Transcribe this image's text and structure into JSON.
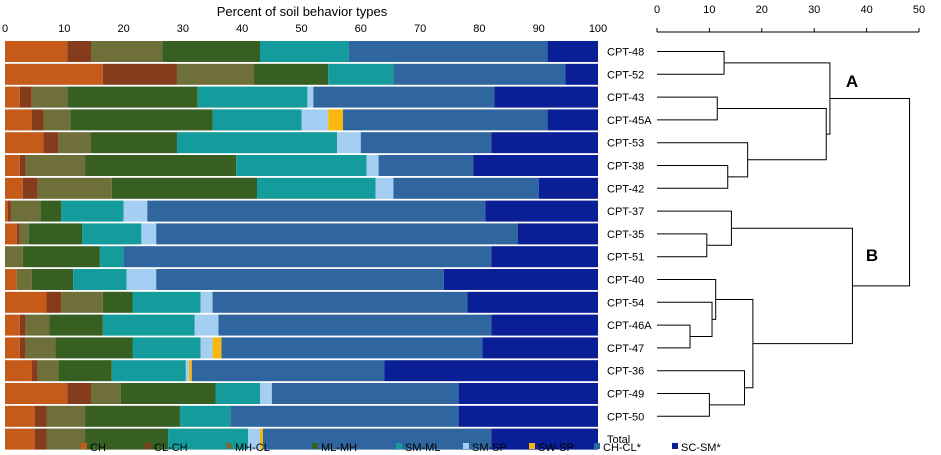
{
  "chart_data": [
    {
      "type": "bar",
      "orientation": "horizontal",
      "stacked": true,
      "title": "Percent of soil behavior types",
      "xlim": [
        0,
        100
      ],
      "xticks": [
        0,
        10,
        20,
        30,
        40,
        50,
        60,
        70,
        80,
        90,
        100
      ],
      "categories": [
        "CPT-48",
        "CPT-52",
        "CPT-43",
        "CPT-45A",
        "CPT-53",
        "CPT-38",
        "CPT-42",
        "CPT-37",
        "CPT-35",
        "CPT-51",
        "CPT-40",
        "CPT-54",
        "CPT-46A",
        "CPT-47",
        "CPT-36",
        "CPT-49",
        "CPT-50",
        "Total"
      ],
      "legend_position": "bottom",
      "series": [
        {
          "name": "CH",
          "color": "#C65A18",
          "values": [
            10.5,
            16.5,
            2.5,
            4.5,
            6.5,
            2.5,
            3,
            0.5,
            2,
            0,
            2,
            7,
            2.5,
            2.5,
            4.5,
            10.5,
            5,
            5
          ]
        },
        {
          "name": "CL-CH",
          "color": "#843C1C",
          "values": [
            4,
            12.5,
            2,
            2,
            2.5,
            1,
            2.5,
            0.5,
            0.5,
            0,
            0,
            2.5,
            1,
            1,
            1,
            4,
            2,
            2
          ]
        },
        {
          "name": "MH-CL",
          "color": "#6F6F3A",
          "values": [
            12,
            13,
            6,
            4.5,
            5.5,
            10,
            12.5,
            5,
            1.5,
            3,
            2.5,
            7,
            4,
            5,
            3.5,
            5,
            6.5,
            6.5
          ]
        },
        {
          "name": "ML-MH",
          "color": "#375F22",
          "values": [
            16.5,
            12.5,
            22,
            24,
            14.5,
            25.5,
            24.5,
            3.5,
            9,
            13,
            7,
            5,
            9,
            13,
            9,
            16,
            16,
            14
          ]
        },
        {
          "name": "SM-ML",
          "color": "#149B9B",
          "values": [
            15,
            11,
            18.5,
            15,
            27,
            22,
            20,
            10.5,
            10,
            4,
            9,
            11.5,
            15.5,
            11.5,
            12.5,
            7.5,
            8.5,
            13.5
          ]
        },
        {
          "name": "SM-SP",
          "color": "#A4CFF2",
          "values": [
            0,
            0,
            1,
            4.5,
            4,
            2,
            3,
            4,
            2.5,
            0,
            5,
            2,
            4,
            2,
            0.5,
            2,
            0,
            2
          ]
        },
        {
          "name": "SW-SP",
          "color": "#F6B810",
          "values": [
            0,
            0,
            0,
            2.5,
            0,
            0,
            0,
            0,
            0,
            0,
            0,
            0,
            0,
            1.5,
            0.5,
            0,
            0,
            0.5
          ]
        },
        {
          "name": "CH-CL*",
          "color": "#2F66A0",
          "values": [
            33.5,
            29,
            30.5,
            34.5,
            22,
            16,
            24.5,
            57,
            61,
            62,
            48.5,
            43,
            46,
            44,
            32.5,
            31.5,
            38.5,
            38.5
          ]
        },
        {
          "name": "SC-SM*",
          "color": "#0A1E96",
          "values": [
            8.5,
            5.5,
            17.5,
            8.5,
            18,
            21,
            10,
            19,
            13.5,
            18,
            26,
            22,
            18,
            19.5,
            36,
            23.5,
            23.5,
            18
          ]
        }
      ]
    },
    {
      "type": "dendrogram",
      "xlim": [
        0,
        50
      ],
      "xticks": [
        0,
        10,
        20,
        30,
        40,
        50
      ],
      "leaves": [
        "CPT-48",
        "CPT-52",
        "CPT-43",
        "CPT-45A",
        "CPT-53",
        "CPT-38",
        "CPT-42",
        "CPT-37",
        "CPT-35",
        "CPT-51",
        "CPT-40",
        "CPT-54",
        "CPT-46A",
        "CPT-47",
        "CPT-36",
        "CPT-49",
        "CPT-50"
      ],
      "cluster_labels": [
        "A",
        "B"
      ],
      "merges": [
        {
          "left": "CPT-48",
          "right": "CPT-52",
          "height": 12.8
        },
        {
          "left": "CPT-43",
          "right": "CPT-45A",
          "height": 11.5
        },
        {
          "left": "CPT-38",
          "right": "CPT-42",
          "height": 13.5
        },
        {
          "left": "CPT-53",
          "right": "[CPT-38, CPT-42]",
          "height": 17.3
        },
        {
          "left": "[CPT-43, CPT-45A]",
          "right": "[CPT-53, CPT-38, CPT-42]",
          "height": 32.3
        },
        {
          "left": "[CPT-48, CPT-52]",
          "right": "cluster-43-42",
          "height": 33.0
        },
        {
          "left": "CPT-35",
          "right": "CPT-51",
          "height": 9.5
        },
        {
          "left": "CPT-37",
          "right": "[CPT-35, CPT-51]",
          "height": 14.2
        },
        {
          "left": "CPT-46A",
          "right": "CPT-47",
          "height": 6.3
        },
        {
          "left": "CPT-54",
          "right": "[CPT-46A, CPT-47]",
          "height": 10.5
        },
        {
          "left": "CPT-40",
          "right": "cluster-54-47",
          "height": 11.2
        },
        {
          "left": "CPT-49",
          "right": "CPT-50",
          "height": 10.0
        },
        {
          "left": "CPT-36",
          "right": "[CPT-49, CPT-50]",
          "height": 16.7
        },
        {
          "left": "cluster-40-47",
          "right": "cluster-36-50",
          "height": 18.3
        },
        {
          "left": "cluster-37-51",
          "right": "cluster-40-50",
          "height": 37.3
        },
        {
          "left": "cluster-A",
          "right": "cluster-B",
          "height": 48.2
        }
      ]
    }
  ]
}
